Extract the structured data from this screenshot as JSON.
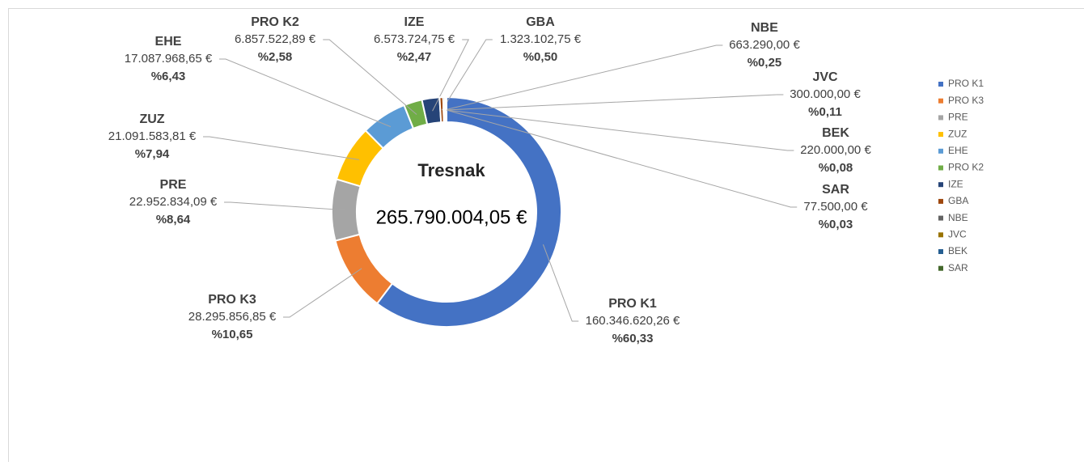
{
  "chart_data": {
    "type": "donut",
    "title": "Tresnak",
    "total_label": "265.790.004,05 €",
    "categories": [
      "PRO K1",
      "PRO K3",
      "PRE",
      "ZUZ",
      "EHE",
      "PRO K2",
      "IZE",
      "GBA",
      "NBE",
      "JVC",
      "BEK",
      "SAR"
    ],
    "values": [
      160346620.26,
      28295856.85,
      22952834.09,
      21091583.81,
      17087968.65,
      6857522.89,
      6573724.75,
      1323102.75,
      663290.0,
      300000.0,
      220000.0,
      77500.0
    ],
    "value_labels": [
      "160.346.620,26 €",
      "28.295.856,85 €",
      "22.952.834,09 €",
      "21.091.583,81 €",
      "17.087.968,65 €",
      "6.857.522,89 €",
      "6.573.724,75 €",
      "1.323.102,75 €",
      "663.290,00 €",
      "300.000,00 €",
      "220.000,00 €",
      "77.500,00 €"
    ],
    "percents": [
      60.33,
      10.65,
      8.64,
      7.94,
      6.43,
      2.58,
      2.47,
      0.5,
      0.25,
      0.11,
      0.08,
      0.03
    ],
    "percent_labels": [
      "%60,33",
      "%10,65",
      "%8,64",
      "%7,94",
      "%6,43",
      "%2,58",
      "%2,47",
      "%0,50",
      "%0,25",
      "%0,11",
      "%0,08",
      "%0,03"
    ],
    "colors": [
      "#4472c4",
      "#ed7d31",
      "#a5a5a5",
      "#ffc000",
      "#5b9bd5",
      "#70ad47",
      "#264478",
      "#9e480e",
      "#636363",
      "#997300",
      "#255e91",
      "#43682b"
    ],
    "legend": "right"
  }
}
